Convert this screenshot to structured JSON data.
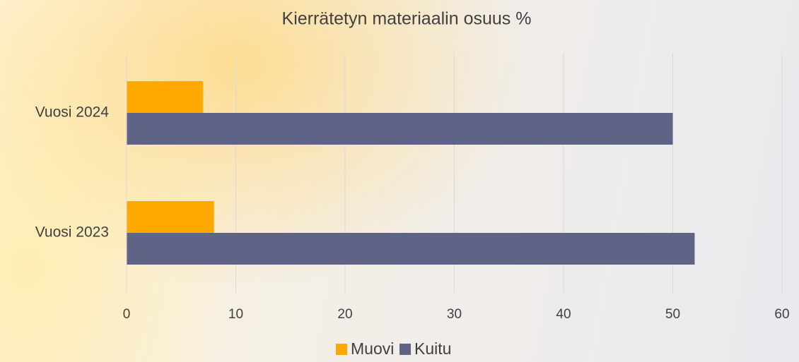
{
  "chart_data": {
    "type": "bar",
    "orientation": "horizontal",
    "title": "Kierrätetyn materiaalin osuus %",
    "categories": [
      "Vuosi 2024",
      "Vuosi 2023"
    ],
    "series": [
      {
        "name": "Muovi",
        "color": "#ffa800",
        "values": [
          7,
          8
        ]
      },
      {
        "name": "Kuitu",
        "color": "#5f6487",
        "values": [
          50,
          52
        ]
      }
    ],
    "xlim": [
      0,
      60
    ],
    "xticks": [
      0,
      10,
      20,
      30,
      40,
      50,
      60
    ],
    "grid": true,
    "legend": "bottom"
  }
}
